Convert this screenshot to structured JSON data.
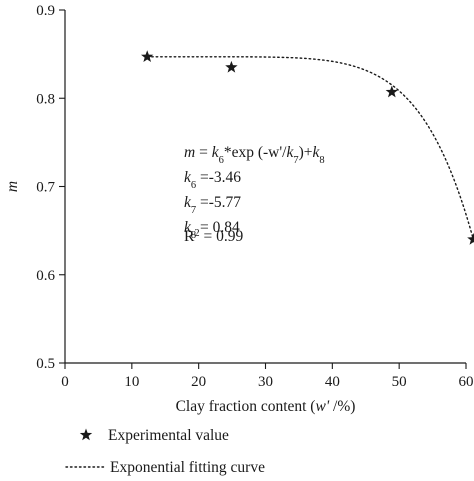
{
  "chart_data": {
    "type": "scatter",
    "xlabel_parts": [
      "Clay fraction content (",
      "w'",
      " /%)"
    ],
    "ylabel": "m",
    "xlim": [
      0,
      60
    ],
    "ylim": [
      0.5,
      0.9
    ],
    "xticks": [
      0,
      10,
      20,
      30,
      40,
      50,
      60
    ],
    "yticks": [
      0.5,
      0.6,
      0.7,
      0.8,
      0.9
    ],
    "x_tick_labels": [
      "0",
      "10",
      "20",
      "30",
      "40",
      "50",
      "60"
    ],
    "y_tick_labels": [
      "0.5",
      "0.6",
      "0.7",
      "0.8",
      "0.9"
    ],
    "grid": false,
    "legend_position": "bottom",
    "series": [
      {
        "name": "Experimental value",
        "marker": "star",
        "color": "#1a1a1a",
        "x": [
          12.3,
          24.9,
          48.9,
          61.1
        ],
        "y": [
          0.847,
          0.835,
          0.807,
          0.64
        ]
      }
    ],
    "fit": {
      "name": "Exponential fitting curve",
      "style": "dotted",
      "color": "#1a1a1a",
      "k6": -3.46,
      "k7": -5.77,
      "k8": 0.84,
      "x_range": [
        12.3,
        61.1
      ]
    },
    "annotation": {
      "equation": [
        {
          "t": "m",
          "i": true
        },
        {
          "t": " = "
        },
        {
          "t": "k",
          "i": true
        },
        {
          "t": "6",
          "sub": true
        },
        {
          "t": "*exp (-w'/"
        },
        {
          "t": "k",
          "i": true
        },
        {
          "t": "7",
          "sub": true
        },
        {
          "t": ")+"
        },
        {
          "t": "k",
          "i": true
        },
        {
          "t": "8",
          "sub": true
        }
      ],
      "params": [
        {
          "sym": "k",
          "sub": "6",
          "text": " =-3.46"
        },
        {
          "sym": "k",
          "sub": "7",
          "text": " =-5.77"
        },
        {
          "sym": "k",
          "sub": "8",
          "text": " = 0.84"
        }
      ],
      "r2": {
        "base": "R",
        "sup": "2",
        "text": " = 0.99"
      }
    }
  }
}
